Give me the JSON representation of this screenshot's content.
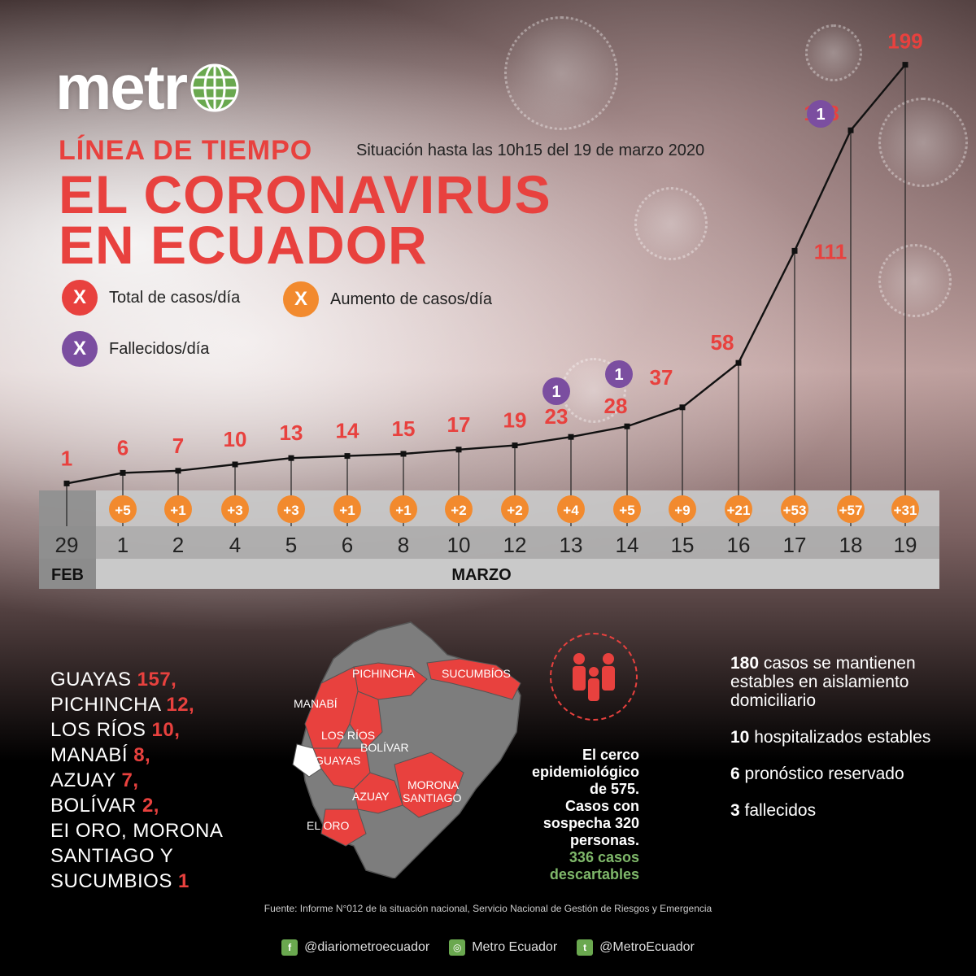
{
  "brand": {
    "logo_text": "metr"
  },
  "header": {
    "kicker": "LÍNEA DE TIEMPO",
    "subtitle": "Situación hasta las 10h15 del 19 de marzo 2020",
    "title_line1": "EL CORONAVIRUS",
    "title_line2": "EN ECUADOR"
  },
  "legend": [
    {
      "symbol": "X",
      "label": "Total de casos/día",
      "color": "#e8413e"
    },
    {
      "symbol": "X",
      "label": "Aumento de casos/día",
      "color": "#f28a2e"
    },
    {
      "symbol": "X",
      "label": "Fallecidos/día",
      "color": "#7b4ea0"
    }
  ],
  "chart_data": {
    "type": "line",
    "x": [
      "29",
      "1",
      "2",
      "4",
      "5",
      "6",
      "8",
      "10",
      "12",
      "13",
      "14",
      "15",
      "16",
      "17",
      "18",
      "19"
    ],
    "months": [
      {
        "label": "FEB",
        "count": 1
      },
      {
        "label": "MARZO",
        "count": 15
      }
    ],
    "series": [
      {
        "name": "Total de casos/día",
        "values": [
          1,
          6,
          7,
          10,
          13,
          14,
          15,
          17,
          19,
          23,
          28,
          37,
          58,
          111,
          168,
          199
        ],
        "color": "#e8413e"
      },
      {
        "name": "Aumento de casos/día",
        "values": [
          null,
          "+5",
          "+1",
          "+3",
          "+3",
          "+1",
          "+1",
          "+2",
          "+2",
          "+4",
          "+5",
          "+9",
          "+21",
          "+53",
          "+57",
          "+31"
        ],
        "color": "#f28a2e"
      },
      {
        "name": "Fallecidos/día",
        "values": [
          null,
          null,
          null,
          null,
          null,
          null,
          null,
          null,
          null,
          1,
          1,
          null,
          null,
          null,
          1,
          null
        ],
        "color": "#7b4ea0"
      }
    ],
    "ylim": [
      0,
      200
    ]
  },
  "provinces": [
    {
      "name": "GUAYAS",
      "count": "157",
      "sep": ","
    },
    {
      "name": "PICHINCHA",
      "count": "12",
      "sep": ","
    },
    {
      "name": "LOS RÍOS",
      "count": "10",
      "sep": ","
    },
    {
      "name": "MANABÍ",
      "count": "8",
      "sep": ","
    },
    {
      "name": "AZUAY",
      "count": "7",
      "sep": ","
    },
    {
      "name": "BOLÍVAR",
      "count": "2",
      "sep": ","
    },
    {
      "name": "EI ORO, MORONA",
      "count": "",
      "sep": ""
    },
    {
      "name": "SANTIAGO Y",
      "count": "",
      "sep": ""
    },
    {
      "name": "SUCUMBIOS",
      "count": "1",
      "sep": ""
    }
  ],
  "map_labels": [
    "PICHINCHA",
    "SUCUMBÍOS",
    "MANABÍ",
    "LOS RÍOS",
    "BOLÍVAR",
    "GUAYAS",
    "AZUAY",
    "MORONA",
    "SANTIAGO",
    "EL ORO"
  ],
  "cerco": {
    "line1": "El cerco",
    "line2": "epidemiológico",
    "line3": "de 575.",
    "line4": "Casos con",
    "line5": "sospecha 320",
    "line6": "personas.",
    "line7": "336 casos",
    "line8": "descartables",
    "highlight_color": "#7fb86a"
  },
  "status": [
    {
      "num": "180",
      "text": " casos se mantienen estables en aislamiento domiciliario"
    },
    {
      "num": "10",
      "text": " hospitalizados estables"
    },
    {
      "num": "6",
      "text": " pronóstico reservado"
    },
    {
      "num": "3",
      "text": " fallecidos"
    }
  ],
  "footer": {
    "source": "Fuente: Informe N°012 de la situación nacional, Servicio Nacional de Gestión de Riesgos y Emergencia",
    "social": [
      {
        "icon": "facebook-icon",
        "glyph": "f",
        "handle": "@diariometroecuador"
      },
      {
        "icon": "instagram-icon",
        "glyph": "◎",
        "handle": "Metro Ecuador"
      },
      {
        "icon": "twitter-icon",
        "glyph": "t",
        "handle": "@MetroEcuador"
      }
    ]
  }
}
